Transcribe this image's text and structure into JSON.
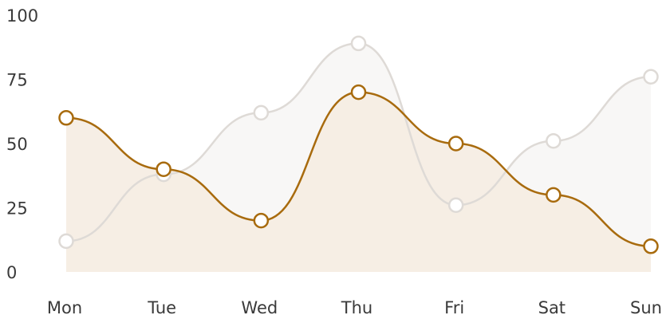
{
  "chart_data": {
    "type": "area",
    "categories": [
      "Mon",
      "Tue",
      "Wed",
      "Thu",
      "Fri",
      "Sat",
      "Sun"
    ],
    "yticks": [
      0,
      25,
      50,
      75,
      100
    ],
    "ylim": [
      0,
      100
    ],
    "grid": false,
    "legend": "none",
    "series": [
      {
        "values": [
          12,
          38,
          62,
          89,
          26,
          51,
          76
        ],
        "line_color": "#dedad6",
        "fill_color": "#f7f6f5",
        "marker_fill": "#ffffff"
      },
      {
        "values": [
          60,
          40,
          20,
          70,
          50,
          30,
          10
        ],
        "line_color": "#a86b0e",
        "fill_color": "#f5ece2",
        "marker_fill": "#ffffff"
      }
    ]
  }
}
